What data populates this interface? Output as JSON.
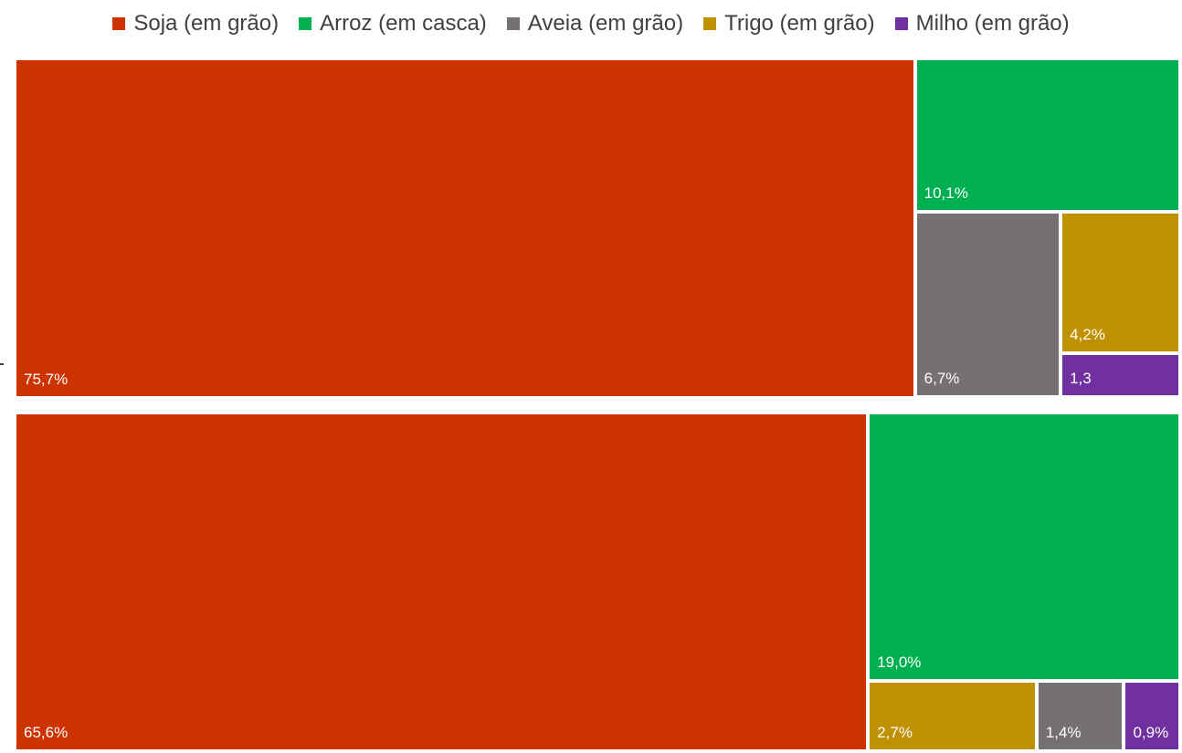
{
  "chart_data": {
    "type": "treemap",
    "colors": {
      "Soja (em grão)": "#cc3300",
      "Arroz (em casca)": "#00b050",
      "Aveia (em grão)": "#767171",
      "Trigo (em grão)": "#bf9000",
      "Milho (em grão)": "#7030a0"
    },
    "legend": [
      {
        "name": "Soja (em grão)",
        "color": "#cc3300"
      },
      {
        "name": "Arroz (em casca)",
        "color": "#00b050"
      },
      {
        "name": "Aveia (em grão)",
        "color": "#767171"
      },
      {
        "name": "Trigo (em grão)",
        "color": "#bf9000"
      },
      {
        "name": "Milho (em grão)",
        "color": "#7030a0"
      }
    ],
    "groups": [
      {
        "items": [
          {
            "name": "Soja (em grão)",
            "value": 75.7,
            "label": "75,7%"
          },
          {
            "name": "Arroz (em casca)",
            "value": 10.1,
            "label": "10,1%"
          },
          {
            "name": "Aveia (em grão)",
            "value": 6.7,
            "label": "6,7%"
          },
          {
            "name": "Trigo (em grão)",
            "value": 4.2,
            "label": "4,2%"
          },
          {
            "name": "Milho (em grão)",
            "value": 1.3,
            "label": "1,3"
          }
        ]
      },
      {
        "items": [
          {
            "name": "Soja (em grão)",
            "value": 65.6,
            "label": "65,6%"
          },
          {
            "name": "Arroz (em casca)",
            "value": 19.0,
            "label": "19,0%"
          },
          {
            "name": "Trigo (em grão)",
            "value": 2.7,
            "label": "2,7%"
          },
          {
            "name": "Aveia (em grão)",
            "value": 1.4,
            "label": "1,4%"
          },
          {
            "name": "Milho (em grão)",
            "value": 0.9,
            "label": "0,9%"
          }
        ]
      }
    ]
  }
}
